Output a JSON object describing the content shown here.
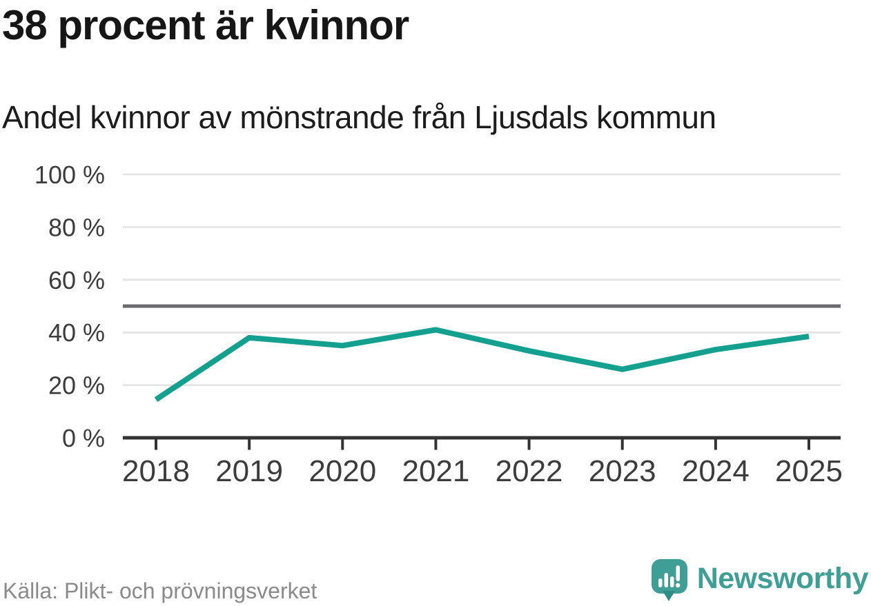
{
  "title": "38 procent är kvinnor",
  "subtitle": "Andel kvinnor av mönstrande från Ljusdals kommun",
  "footer": {
    "source": "Källa: Plikt- och prövningsverket",
    "brand": "Newsworthy"
  },
  "chart_data": {
    "type": "line",
    "title": "38 procent är kvinnor",
    "subtitle": "Andel kvinnor av mönstrande från Ljusdals kommun",
    "x": [
      2018,
      2019,
      2020,
      2021,
      2022,
      2023,
      2024,
      2025
    ],
    "values": [
      14.5,
      38,
      35,
      41,
      33,
      26,
      33.5,
      38.5
    ],
    "unit": "%",
    "ylim": [
      0,
      100
    ],
    "yticks": [
      0,
      20,
      40,
      60,
      80,
      100
    ],
    "tick_suffix": " %",
    "reference_line": {
      "value": 50
    },
    "grid": true,
    "legend": "none",
    "source": "Källa: Plikt- och prövningsverket",
    "line_color": "#13a08f",
    "reference_color": "#6a6a6c",
    "grid_color": "#e2e2e2",
    "axis_color": "#333333",
    "tick_label_color": "#3c3c3c",
    "title_color": "#161616",
    "source_color": "#8a8a8a",
    "brand_color": "#3f9f96"
  }
}
